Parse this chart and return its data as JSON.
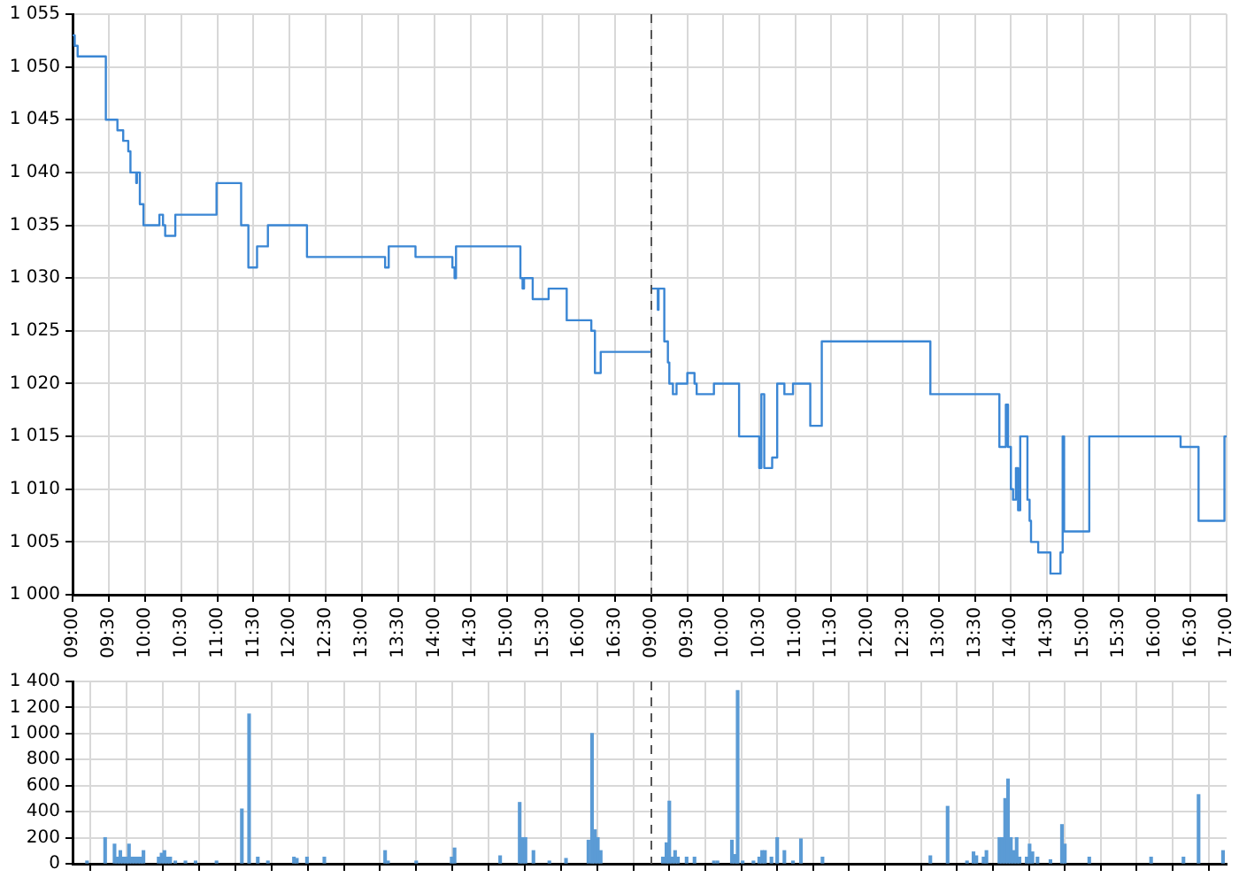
{
  "chart_data": [
    {
      "type": "step",
      "color": "#3a86d4",
      "marker": "none",
      "line_style": "solid",
      "grid": true,
      "tick_labels": "xy",
      "x": [
        9,
        9.03,
        9.07,
        9.46,
        9.62,
        9.7,
        9.77,
        9.8,
        9.88,
        9.89,
        9.93,
        9.98,
        10.2,
        10.25,
        10.28,
        10.42,
        10.99,
        11.33,
        11.43,
        11.55,
        11.7,
        12.24,
        13.32,
        13.37,
        13.74,
        14.25,
        14.28,
        14.3,
        15.19,
        15.22,
        15.24,
        15.36,
        15.58,
        15.83,
        16.17,
        16.22,
        16.3,
        17
      ],
      "values": [
        1053,
        1052,
        1051,
        1045,
        1044,
        1043,
        1042,
        1040,
        1039,
        1040,
        1037,
        1035,
        1036,
        1035,
        1034,
        1036,
        1039,
        1035,
        1031,
        1033,
        1035,
        1032,
        1031,
        1033,
        1032,
        1031,
        1030,
        1033,
        1030,
        1029,
        1030,
        1028,
        1029,
        1026,
        1025,
        1021,
        1023,
        1023
      ],
      "xlim": [
        9,
        17
      ],
      "xticks": [
        {
          "value": 9,
          "label": "09:00"
        },
        {
          "value": 9.5,
          "label": "09:30"
        },
        {
          "value": 10,
          "label": "10:00"
        },
        {
          "value": 10.5,
          "label": "10:30"
        },
        {
          "value": 11,
          "label": "11:00"
        },
        {
          "value": 11.5,
          "label": "11:30"
        },
        {
          "value": 12,
          "label": "12:00"
        },
        {
          "value": 12.5,
          "label": "12:30"
        },
        {
          "value": 13,
          "label": "13:00"
        },
        {
          "value": 13.5,
          "label": "13:30"
        },
        {
          "value": 14,
          "label": "14:00"
        },
        {
          "value": 14.5,
          "label": "14:30"
        },
        {
          "value": 15,
          "label": "15:00"
        },
        {
          "value": 15.5,
          "label": "15:30"
        },
        {
          "value": 16,
          "label": "16:00"
        },
        {
          "value": 16.5,
          "label": "16:30"
        }
      ],
      "ylim": [
        1000,
        1055
      ],
      "yticks": [
        {
          "value": 1000,
          "label": "1 000"
        },
        {
          "value": 1005,
          "label": "1 005"
        },
        {
          "value": 1010,
          "label": "1 010"
        },
        {
          "value": 1015,
          "label": "1 015"
        },
        {
          "value": 1020,
          "label": "1 020"
        },
        {
          "value": 1025,
          "label": "1 025"
        },
        {
          "value": 1030,
          "label": "1 030"
        },
        {
          "value": 1035,
          "label": "1 035"
        },
        {
          "value": 1040,
          "label": "1 040"
        },
        {
          "value": 1045,
          "label": "1 045"
        },
        {
          "value": 1050,
          "label": "1 050"
        },
        {
          "value": 1055,
          "label": "1 055"
        }
      ]
    },
    {
      "type": "step",
      "color": "#3a86d4",
      "marker": "none",
      "line_style": "solid",
      "grid": true,
      "tick_labels": "x",
      "x": [
        9.0,
        9.09,
        9.1,
        9.18,
        9.23,
        9.25,
        9.3,
        9.35,
        9.5,
        9.6,
        9.63,
        9.87,
        10.22,
        10.5,
        10.53,
        10.57,
        10.68,
        10.75,
        10.85,
        10.97,
        11.21,
        11.37,
        12.88,
        13.84,
        13.93,
        13.96,
        14.0,
        14.03,
        14.07,
        14.1,
        14.13,
        14.23,
        14.26,
        14.28,
        14.38,
        14.55,
        14.69,
        14.72,
        14.74,
        15.09,
        16.36,
        16.61,
        16.97,
        17.0
      ],
      "values": [
        1029,
        1027,
        1029,
        1024,
        1022,
        1020,
        1019,
        1020,
        1021,
        1020,
        1019,
        1020,
        1015,
        1012,
        1019,
        1012,
        1013,
        1020,
        1019,
        1020,
        1016,
        1024,
        1019,
        1014,
        1018,
        1014,
        1010,
        1009,
        1012,
        1008,
        1015,
        1009,
        1007,
        1005,
        1004,
        1002,
        1004,
        1015,
        1006,
        1015,
        1014,
        1007,
        1015,
        1015
      ],
      "xlim": [
        9,
        17
      ],
      "xticks": [
        {
          "value": 9,
          "label": "09:00"
        },
        {
          "value": 9.5,
          "label": "09:30"
        },
        {
          "value": 10,
          "label": "10:00"
        },
        {
          "value": 10.5,
          "label": "10:30"
        },
        {
          "value": 11,
          "label": "11:00"
        },
        {
          "value": 11.5,
          "label": "11:30"
        },
        {
          "value": 12,
          "label": "12:00"
        },
        {
          "value": 12.5,
          "label": "12:30"
        },
        {
          "value": 13,
          "label": "13:00"
        },
        {
          "value": 13.5,
          "label": "13:30"
        },
        {
          "value": 14,
          "label": "14:00"
        },
        {
          "value": 14.5,
          "label": "14:30"
        },
        {
          "value": 15,
          "label": "15:00"
        },
        {
          "value": 15.5,
          "label": "15:30"
        },
        {
          "value": 16,
          "label": "16:00"
        },
        {
          "value": 16.5,
          "label": "16:30"
        },
        {
          "value": 17,
          "label": "17:00"
        }
      ],
      "ylim": [
        1000,
        1055
      ],
      "yticks": [
        1000,
        1005,
        1010,
        1015,
        1020,
        1025,
        1030,
        1035,
        1040,
        1045,
        1050,
        1055
      ],
      "ref_lines": [
        {
          "axis": "x",
          "value": 9,
          "color": "#555555",
          "line_style": "dashed"
        }
      ]
    },
    {
      "type": "bar",
      "color": "#5b9bd5",
      "grid": true,
      "tick_labels": "y",
      "x": [
        9.2,
        9.45,
        9.58,
        9.62,
        9.66,
        9.7,
        9.74,
        9.78,
        9.82,
        9.86,
        9.9,
        9.94,
        9.98,
        10.19,
        10.23,
        10.27,
        10.31,
        10.35,
        10.42,
        10.56,
        10.7,
        10.99,
        11.34,
        11.44,
        11.56,
        11.7,
        12.06,
        12.1,
        12.24,
        12.48,
        13.32,
        13.36,
        13.75,
        14.24,
        14.28,
        14.91,
        15.18,
        15.22,
        15.26,
        15.37,
        15.59,
        15.82,
        16.13,
        16.18,
        16.22,
        16.26,
        16.3
      ],
      "values": [
        20,
        200,
        150,
        50,
        100,
        50,
        50,
        150,
        50,
        50,
        50,
        50,
        100,
        50,
        80,
        100,
        50,
        50,
        20,
        20,
        20,
        20,
        420,
        1150,
        50,
        20,
        50,
        40,
        50,
        50,
        100,
        20,
        20,
        50,
        120,
        60,
        470,
        200,
        200,
        100,
        20,
        40,
        180,
        1000,
        260,
        200,
        100
      ],
      "xlim": [
        9,
        17
      ],
      "xticks": [
        9,
        9.5,
        10,
        10.5,
        11,
        11.5,
        12,
        12.5,
        13,
        13.5,
        14,
        14.5,
        15,
        15.5,
        16,
        16.5
      ],
      "ylim": [
        0,
        1400
      ],
      "yticks": [
        0,
        200,
        400,
        600,
        800,
        {
          "value": 1000,
          "label": "1 000"
        },
        {
          "value": 1200,
          "label": "1 200"
        },
        {
          "value": 1400,
          "label": "1 400"
        }
      ]
    },
    {
      "type": "bar",
      "color": "#5b9bd5",
      "grid": true,
      "tick_labels": false,
      "x": [
        9.16,
        9.21,
        9.25,
        9.29,
        9.33,
        9.37,
        9.49,
        9.6,
        9.87,
        9.92,
        10.12,
        10.16,
        10.2,
        10.27,
        10.42,
        10.5,
        10.54,
        10.58,
        10.67,
        10.75,
        10.85,
        10.97,
        11.08,
        11.38,
        12.88,
        13.12,
        13.39,
        13.48,
        13.52,
        13.62,
        13.66,
        13.84,
        13.88,
        13.92,
        13.96,
        14.0,
        14.04,
        14.08,
        14.12,
        14.22,
        14.26,
        14.3,
        14.37,
        14.55,
        14.71,
        14.75,
        15.09,
        15.95,
        16.4,
        16.61,
        16.95
      ],
      "values": [
        50,
        160,
        480,
        50,
        100,
        50,
        50,
        50,
        20,
        20,
        180,
        70,
        1330,
        20,
        20,
        50,
        100,
        100,
        50,
        200,
        100,
        20,
        190,
        50,
        60,
        440,
        20,
        90,
        60,
        50,
        100,
        200,
        200,
        500,
        650,
        200,
        100,
        200,
        50,
        50,
        150,
        90,
        50,
        30,
        300,
        150,
        50,
        50,
        50,
        530,
        100
      ],
      "xlim": [
        9,
        17
      ],
      "xticks": [
        9,
        9.5,
        10,
        10.5,
        11,
        11.5,
        12,
        12.5,
        13,
        13.5,
        14,
        14.5,
        15,
        15.5,
        16,
        16.5,
        17
      ],
      "ylim": [
        0,
        1400
      ],
      "yticks": [
        0,
        200,
        400,
        600,
        800,
        1000,
        1200,
        1400
      ],
      "ref_lines": [
        {
          "axis": "x",
          "value": 9,
          "color": "#555555",
          "line_style": "dashed"
        }
      ]
    }
  ]
}
